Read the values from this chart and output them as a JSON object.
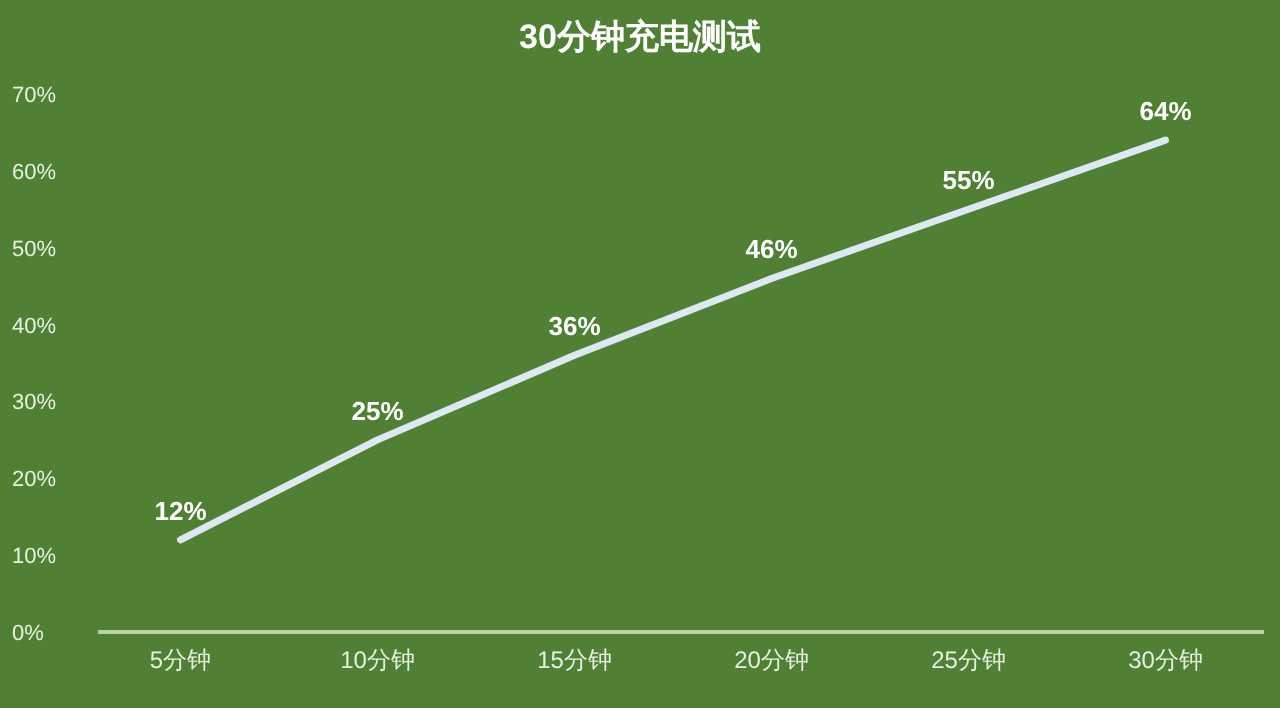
{
  "chart_data": {
    "type": "line",
    "title": "30分钟充电测试",
    "categories": [
      "5分钟",
      "10分钟",
      "15分钟",
      "20分钟",
      "25分钟",
      "30分钟"
    ],
    "values": [
      12,
      25,
      36,
      46,
      55,
      64
    ],
    "value_labels": [
      "12%",
      "25%",
      "36%",
      "46%",
      "55%",
      "64%"
    ],
    "color": "#dce9f2",
    "ylim": [
      0,
      70
    ],
    "yticks": [
      {
        "value": 0,
        "label": "0%"
      },
      {
        "value": 10,
        "label": "10%"
      },
      {
        "value": 20,
        "label": "20%"
      },
      {
        "value": 30,
        "label": "30%"
      },
      {
        "value": 40,
        "label": "40%"
      },
      {
        "value": 50,
        "label": "50%"
      },
      {
        "value": 60,
        "label": "60%"
      },
      {
        "value": 70,
        "label": "70%"
      }
    ]
  }
}
